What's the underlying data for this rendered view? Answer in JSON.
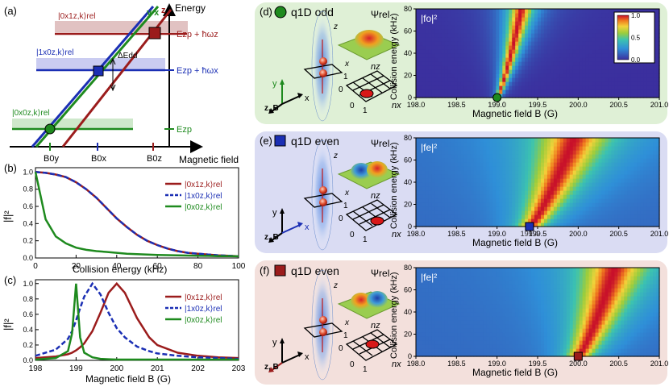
{
  "panel_a": {
    "label": "(a)",
    "y_axis_label": "Energy",
    "x_axis_label": "Magnetic field",
    "line_labels": {
      "z": "z",
      "yx": "y x"
    },
    "state_labels": [
      "|0x1z,k⟩rel",
      "|1x0z,k⟩rel",
      "|0x0z,k⟩rel"
    ],
    "energy_labels": [
      "Ezp + ħωz",
      "Ezp + ħωx",
      "Ezp"
    ],
    "delta_label": "ΔEdd",
    "field_ticks": [
      "B0y",
      "B0x",
      "B0z"
    ],
    "colors": {
      "z": "#9b1c1c",
      "x": "#1b2fb4",
      "y": "#1e8a1e"
    }
  },
  "panel_b": {
    "label": "(b)",
    "xlabel": "Collision energy (kHz)",
    "ylabel": "|f|²",
    "xticks": [
      "0",
      "20",
      "40",
      "60",
      "80",
      "100"
    ],
    "yticks": [
      "0.0",
      "0.2",
      "0.4",
      "0.6",
      "0.8",
      "1.0"
    ],
    "legend": [
      "|0x1z,k⟩rel",
      "|1x0z,k⟩rel",
      "|0x0z,k⟩rel"
    ]
  },
  "panel_c": {
    "label": "(c)",
    "xlabel": "Magnetic field B (G)",
    "ylabel": "|f|²",
    "xticks": [
      "198",
      "199",
      "200",
      "201",
      "202",
      "203"
    ],
    "yticks": [
      "0.0",
      "0.2",
      "0.4",
      "0.6",
      "0.8",
      "1.0"
    ],
    "legend": [
      "|0x1z,k⟩rel",
      "|1x0z,k⟩rel",
      "|0x0z,k⟩rel"
    ]
  },
  "panel_d": {
    "label": "(d)",
    "title": "q1D odd",
    "psi": "Ψrel",
    "field_label": "|fo|²",
    "xlabel": "Magnetic field B (G)",
    "ylabel": "Collision energy (kHz)",
    "xticks": [
      "198.0",
      "198.5",
      "199.0",
      "199.5",
      "200.0",
      "200.5",
      "201.0"
    ],
    "yticks": [
      "0",
      "20",
      "40",
      "60",
      "80"
    ],
    "cbar_ticks": [
      "1.0",
      "0.5",
      "0.0"
    ],
    "marker_label": "199.0",
    "axes_labels": [
      "y",
      "z, B",
      "x"
    ],
    "grid_labels": [
      "nz",
      "nx",
      "0",
      "1",
      "0",
      "1"
    ],
    "psi_axes": [
      "z",
      "x"
    ]
  },
  "panel_e": {
    "label": "(e)",
    "title": "q1D even",
    "psi": "Ψrel",
    "field_label": "|fe|²",
    "xlabel": "Magnetic field B (G)",
    "ylabel": "Collision energy (kHz)",
    "xticks": [
      "198.0",
      "198.5",
      "199.0",
      "199.5",
      "200.0",
      "200.5",
      "201.0"
    ],
    "yticks": [
      "0",
      "20",
      "40",
      "60",
      "80"
    ],
    "marker_label": "199.4",
    "axes_labels": [
      "y",
      "z, B",
      "x"
    ],
    "grid_labels": [
      "nz",
      "nx",
      "0",
      "1",
      "0",
      "1"
    ],
    "psi_axes": [
      "z",
      "x"
    ]
  },
  "panel_f": {
    "label": "(f)",
    "title": "q1D even",
    "psi": "Ψrel",
    "field_label": "|fe|²",
    "xlabel": "Magnetic field B (G)",
    "ylabel": "Collision energy (kHz)",
    "xticks": [
      "198.0",
      "198.5",
      "199.0",
      "199.5",
      "200.0",
      "200.5",
      "201.0"
    ],
    "yticks": [
      "0",
      "20",
      "40",
      "60",
      "80"
    ],
    "marker_label": "200.0",
    "axes_labels": [
      "y",
      "z, B",
      "x"
    ],
    "grid_labels": [
      "nz",
      "nx",
      "0",
      "1",
      "0",
      "1"
    ],
    "psi_axes": [
      "z",
      "x"
    ]
  },
  "chart_data": [
    {
      "type": "line",
      "panel": "b",
      "xlabel": "Collision energy (kHz)",
      "ylabel": "|f|²",
      "xlim": [
        0,
        100
      ],
      "ylim": [
        0,
        1.05
      ],
      "x": [
        0,
        5,
        10,
        15,
        20,
        25,
        30,
        35,
        40,
        45,
        50,
        55,
        60,
        65,
        70,
        75,
        80,
        85,
        90,
        95,
        100
      ],
      "series": [
        {
          "name": "|0x1z,k⟩rel",
          "values": [
            1.0,
            0.99,
            0.97,
            0.94,
            0.88,
            0.8,
            0.7,
            0.58,
            0.46,
            0.36,
            0.27,
            0.2,
            0.15,
            0.11,
            0.08,
            0.06,
            0.05,
            0.04,
            0.03,
            0.025,
            0.02
          ]
        },
        {
          "name": "|1x0z,k⟩rel",
          "values": [
            1.0,
            0.99,
            0.97,
            0.94,
            0.88,
            0.8,
            0.7,
            0.58,
            0.46,
            0.36,
            0.27,
            0.2,
            0.15,
            0.11,
            0.08,
            0.06,
            0.05,
            0.04,
            0.03,
            0.025,
            0.02
          ]
        },
        {
          "name": "|0x0z,k⟩rel",
          "values": [
            1.0,
            0.45,
            0.25,
            0.17,
            0.12,
            0.095,
            0.08,
            0.07,
            0.06,
            0.05,
            0.045,
            0.04,
            0.036,
            0.033,
            0.03,
            0.028,
            0.026,
            0.024,
            0.022,
            0.021,
            0.02
          ]
        }
      ]
    },
    {
      "type": "line",
      "panel": "c",
      "xlabel": "Magnetic field B (G)",
      "ylabel": "|f|²",
      "xlim": [
        198,
        203
      ],
      "ylim": [
        0,
        1.05
      ],
      "x": [
        198.0,
        198.5,
        198.8,
        198.9,
        199.0,
        199.1,
        199.2,
        199.4,
        199.6,
        199.8,
        200.0,
        200.2,
        200.5,
        200.8,
        201.0,
        201.5,
        202.0,
        202.5,
        203.0
      ],
      "series": [
        {
          "name": "|0x1z,k⟩rel",
          "values": [
            0.03,
            0.05,
            0.08,
            0.1,
            0.13,
            0.17,
            0.22,
            0.38,
            0.62,
            0.88,
            1.0,
            0.88,
            0.55,
            0.3,
            0.2,
            0.1,
            0.06,
            0.04,
            0.03
          ]
        },
        {
          "name": "|1x0z,k⟩rel",
          "values": [
            0.06,
            0.14,
            0.28,
            0.38,
            0.52,
            0.68,
            0.83,
            1.0,
            0.86,
            0.62,
            0.42,
            0.3,
            0.18,
            0.12,
            0.09,
            0.06,
            0.04,
            0.03,
            0.02
          ]
        },
        {
          "name": "|0x0z,k⟩rel",
          "values": [
            0.01,
            0.03,
            0.12,
            0.35,
            1.0,
            0.3,
            0.1,
            0.04,
            0.02,
            0.015,
            0.01,
            0.01,
            0.01,
            0.01,
            0.01,
            0.01,
            0.01,
            0.01,
            0.01
          ]
        }
      ]
    },
    {
      "type": "heatmap",
      "panel": "d",
      "title": "|fo|²",
      "xlabel": "Magnetic field B (G)",
      "ylabel": "Collision energy (kHz)",
      "xlim": [
        198.0,
        201.0
      ],
      "ylim": [
        0,
        80
      ],
      "ridge_x": [
        199.0,
        199.3
      ],
      "ridge_width": [
        0.02,
        0.12
      ],
      "cbar_range": [
        0,
        1
      ]
    },
    {
      "type": "heatmap",
      "panel": "e",
      "title": "|fe|²",
      "xlabel": "Magnetic field B (G)",
      "ylabel": "Collision energy (kHz)",
      "xlim": [
        198.0,
        201.0
      ],
      "ylim": [
        0,
        80
      ],
      "ridge_x": [
        199.4,
        199.95
      ],
      "ridge_width": [
        0.12,
        0.35
      ]
    },
    {
      "type": "heatmap",
      "panel": "f",
      "title": "|fe|²",
      "xlabel": "Magnetic field B (G)",
      "ylabel": "Collision energy (kHz)",
      "xlim": [
        198.0,
        201.0
      ],
      "ylim": [
        0,
        80
      ],
      "ridge_x": [
        200.0,
        200.45
      ],
      "ridge_width": [
        0.12,
        0.32
      ]
    }
  ]
}
